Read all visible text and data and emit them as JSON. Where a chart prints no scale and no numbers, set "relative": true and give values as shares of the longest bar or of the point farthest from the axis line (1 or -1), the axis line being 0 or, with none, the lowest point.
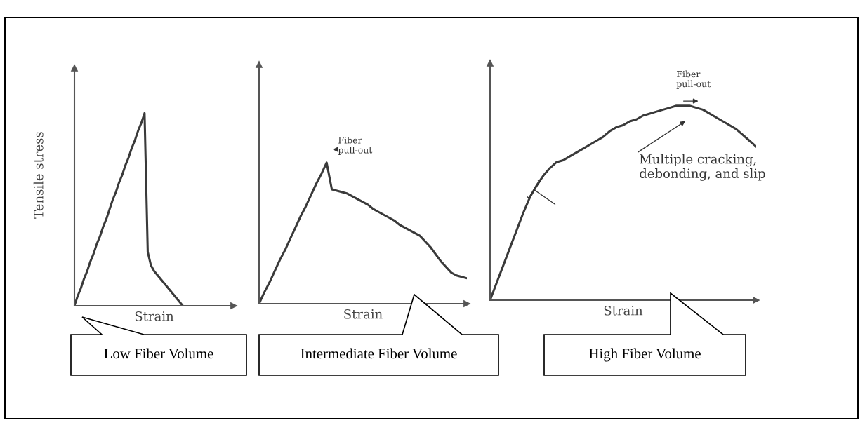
{
  "chart_data": [
    {
      "type": "line",
      "relative": true,
      "ylabel": "Tensile stress",
      "xlabel": "Strain",
      "line_style": "solid",
      "categories": [
        null,
        null,
        null,
        null,
        null,
        null,
        null,
        null,
        null,
        null,
        null,
        null,
        null,
        null,
        null,
        null,
        null,
        null,
        null,
        null,
        null,
        null,
        null,
        null,
        null,
        null,
        null,
        null,
        null,
        null,
        null,
        null,
        null,
        null,
        null
      ],
      "series": [
        {
          "color": "#3a3a3a",
          "values": [
            0,
            0.05,
            0.09,
            0.14,
            0.18,
            0.23,
            0.27,
            0.32,
            0.36,
            0.41,
            0.45,
            0.5,
            0.55,
            0.59,
            0.64,
            0.68,
            0.73,
            0.77,
            0.82,
            0.86,
            0.91,
            0.95,
            1,
            0.28,
            0.21,
            0.18,
            0.16,
            0.14,
            0.12,
            0.1,
            0.08,
            0.06,
            0.04,
            0.02,
            0
          ]
        }
      ],
      "annotations": [
        "Low Fiber Volume"
      ]
    },
    {
      "type": "line",
      "relative": true,
      "xlabel": "Strain",
      "line_style": "solid",
      "categories": [
        null,
        null,
        null,
        null,
        null,
        null,
        null,
        null,
        null,
        null,
        null,
        null,
        null,
        null,
        null,
        null,
        null,
        null,
        null,
        null,
        null,
        null,
        null,
        null,
        null,
        null,
        null,
        null,
        null,
        null,
        null,
        null,
        null,
        null,
        null,
        null,
        null,
        null,
        null,
        null,
        null
      ],
      "series": [
        {
          "color": "#3a3a3a",
          "values": [
            0,
            0.08,
            0.15,
            0.23,
            0.31,
            0.38,
            0.46,
            0.54,
            0.62,
            0.69,
            0.77,
            0.85,
            0.92,
            1,
            0.81,
            0.8,
            0.79,
            0.78,
            0.76,
            0.74,
            0.72,
            0.7,
            0.67,
            0.65,
            0.63,
            0.61,
            0.59,
            0.56,
            0.54,
            0.52,
            0.5,
            0.48,
            0.44,
            0.4,
            0.35,
            0.3,
            0.26,
            0.22,
            0.2,
            0.19,
            0.18
          ]
        }
      ],
      "annotations": [
        "Fiber\npull-out",
        "Intermediate Fiber Volume"
      ]
    },
    {
      "type": "line",
      "relative": true,
      "xlabel": "Strain",
      "line_style": "solid",
      "categories": [
        null,
        null,
        null,
        null,
        null,
        null,
        null,
        null,
        null,
        null,
        null,
        null,
        null,
        null,
        null,
        null,
        null,
        null,
        null,
        null,
        null,
        null,
        null,
        null,
        null,
        null,
        null,
        null,
        null,
        null,
        null,
        null,
        null,
        null,
        null,
        null,
        null,
        null,
        null,
        null,
        null
      ],
      "series": [
        {
          "color": "#3a3a3a",
          "values": [
            0,
            0.09,
            0.18,
            0.27,
            0.36,
            0.45,
            0.53,
            0.59,
            0.64,
            0.68,
            0.71,
            0.72,
            0.74,
            0.76,
            0.78,
            0.8,
            0.82,
            0.84,
            0.87,
            0.89,
            0.9,
            0.92,
            0.93,
            0.95,
            0.96,
            0.97,
            0.98,
            0.99,
            1,
            1,
            1,
            0.99,
            0.98,
            0.96,
            0.94,
            0.92,
            0.9,
            0.88,
            0.85,
            0.82,
            0.79
          ]
        }
      ],
      "annotations": [
        "Fiber\npull-out",
        "Multiple cracking,\ndebonding, and slip",
        "High Fiber Volume"
      ]
    }
  ]
}
